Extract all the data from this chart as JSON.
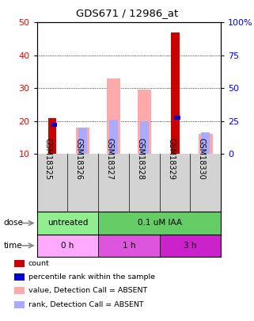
{
  "title": "GDS671 / 12986_at",
  "samples": [
    "GSM18325",
    "GSM18326",
    "GSM18327",
    "GSM18328",
    "GSM18329",
    "GSM18330"
  ],
  "left_ylim": [
    10,
    50
  ],
  "left_yticks": [
    10,
    20,
    30,
    40,
    50
  ],
  "right_ylim": [
    0,
    100
  ],
  "right_yticks": [
    0,
    25,
    50,
    75,
    100
  ],
  "right_yticklabels": [
    "0",
    "25",
    "50",
    "75",
    "100%"
  ],
  "count_values": [
    21,
    null,
    null,
    null,
    47,
    null
  ],
  "rank_values": [
    19,
    null,
    null,
    null,
    21,
    null
  ],
  "absent_value_tops": [
    null,
    18,
    33,
    29.5,
    null,
    16
  ],
  "absent_rank_tops": [
    null,
    18,
    20.5,
    20,
    null,
    16.5
  ],
  "bar_bottom": 10,
  "dose_labels": [
    [
      "untreated",
      0,
      2
    ],
    [
      "0.1 uM IAA",
      2,
      6
    ]
  ],
  "time_labels": [
    [
      "0 h",
      0,
      2
    ],
    [
      "1 h",
      2,
      4
    ],
    [
      "3 h",
      4,
      6
    ]
  ],
  "count_color": "#cc0000",
  "rank_color": "#0000cc",
  "absent_value_color": "#ffaaaa",
  "absent_rank_color": "#aaaaff",
  "dose_colors": [
    "#90ee90",
    "#66cc66"
  ],
  "time_colors": [
    "#ffaaff",
    "#dd55dd",
    "#cc22cc"
  ],
  "sample_bg": "#d3d3d3",
  "legend_items": [
    [
      "#cc0000",
      "count"
    ],
    [
      "#0000cc",
      "percentile rank within the sample"
    ],
    [
      "#ffaaaa",
      "value, Detection Call = ABSENT"
    ],
    [
      "#aaaaff",
      "rank, Detection Call = ABSENT"
    ]
  ]
}
